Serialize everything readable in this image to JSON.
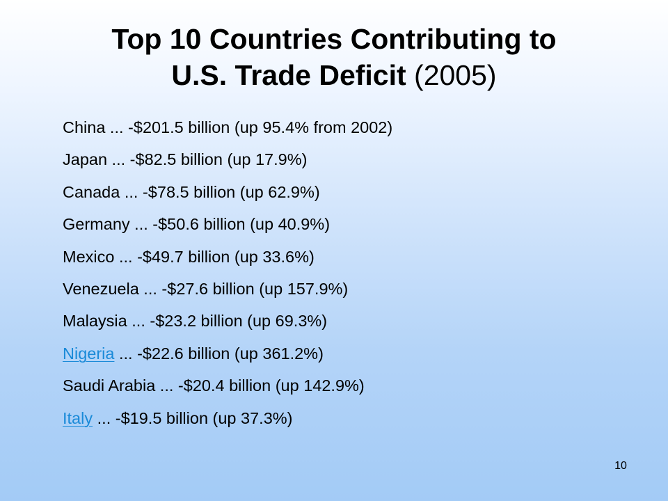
{
  "slide": {
    "title_line1": "Top 10 Countries Contributing to",
    "title_line2_bold": "U.S. Trade Deficit",
    "title_year": "(2005)",
    "page_number": "10",
    "link_color": "#1a8ad8"
  },
  "items": [
    {
      "country": "China",
      "rest": " ... -$201.5 billion (up 95.4% from 2002)",
      "is_link": false
    },
    {
      "country": "Japan",
      "rest": " ... -$82.5 billion (up 17.9%)",
      "is_link": false
    },
    {
      "country": "Canada",
      "rest": " ... -$78.5 billion (up 62.9%)",
      "is_link": false
    },
    {
      "country": "Germany",
      "rest": " ... -$50.6 billion (up 40.9%)",
      "is_link": false
    },
    {
      "country": "Mexico",
      "rest": " ... -$49.7 billion (up 33.6%)",
      "is_link": false
    },
    {
      "country": "Venezuela",
      "rest": " ... -$27.6 billion (up 157.9%)",
      "is_link": false
    },
    {
      "country": "Malaysia",
      "rest": " ... -$23.2 billion (up 69.3%)",
      "is_link": false
    },
    {
      "country": "Nigeria",
      "rest": " ... -$22.6 billion (up 361.2%)",
      "is_link": true
    },
    {
      "country": "Saudi Arabia",
      "rest": " ... -$20.4 billion (up 142.9%)",
      "is_link": false
    },
    {
      "country": "Italy",
      "rest": " ... -$19.5 billion (up 37.3%)",
      "is_link": true
    }
  ]
}
